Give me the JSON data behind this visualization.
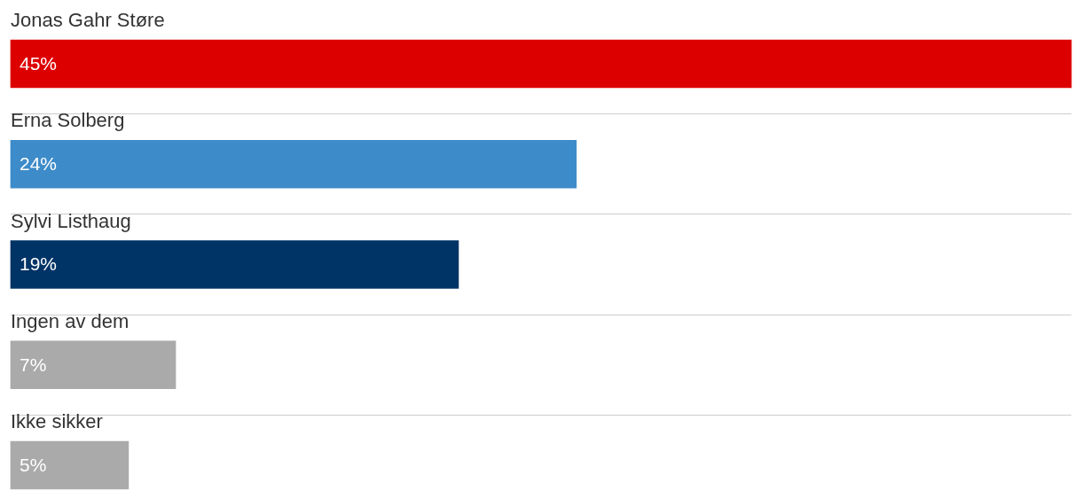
{
  "chart_data": {
    "type": "bar",
    "orientation": "horizontal",
    "categories": [
      "Jonas Gahr Støre",
      "Erna Solberg",
      "Sylvi Listhaug",
      "Ingen av dem",
      "Ikke sikker"
    ],
    "values": [
      45,
      24,
      19,
      7,
      5
    ],
    "colors": [
      "#dd0000",
      "#3d8bc9",
      "#003366",
      "#aaaaaa",
      "#aaaaaa"
    ],
    "value_labels": [
      "45%",
      "24%",
      "19%",
      "7%",
      "5%"
    ],
    "grid": "y"
  }
}
